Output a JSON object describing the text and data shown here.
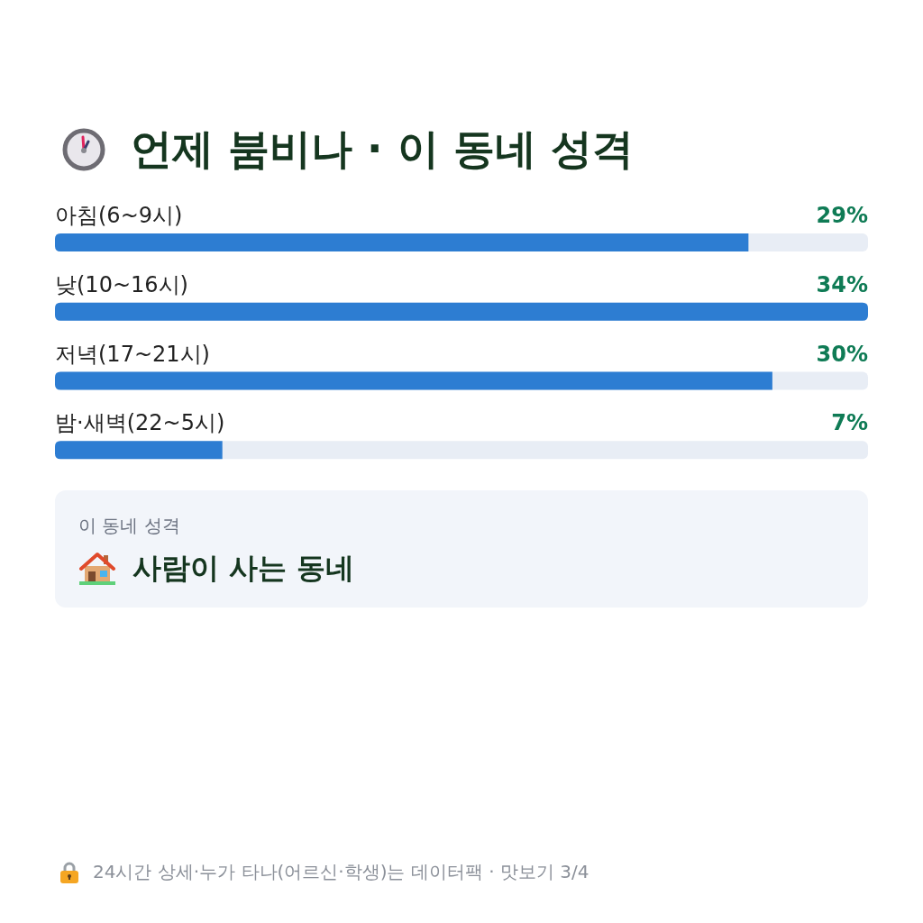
{
  "chart_data": [
    {
      "type": "bar",
      "title": "언제 붐비나 · 이 동네 성격",
      "orientation": "horizontal",
      "categories": [
        "아침(6~9시)",
        "낮(10~16시)",
        "저녁(17~21시)",
        "밤·새벽(22~5시)"
      ],
      "values": [
        29,
        34,
        30,
        7
      ],
      "color": "#2d7dd2",
      "value_labels": [
        "29%",
        "34%",
        "30%",
        "7%"
      ],
      "xlim": [
        0,
        34
      ],
      "annotations": [
        "24시간 상세·누가 타나(어르신·학생)는 데이터팩 · 맛보기 3/4"
      ]
    },
    {
      "type": "other",
      "title": "이 동네 성격",
      "annotations": [
        "사람이 사는 동네"
      ]
    }
  ]
}
